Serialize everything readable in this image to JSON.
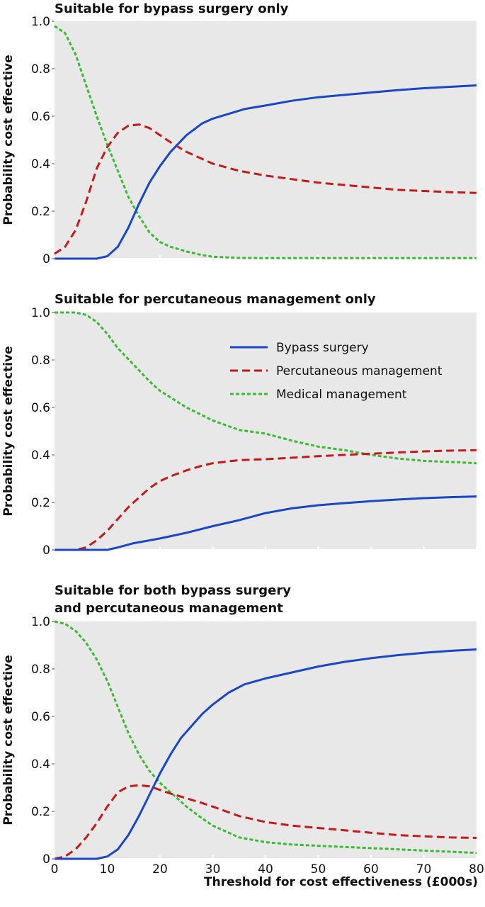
{
  "figure": {
    "xlabel": "Threshold for cost effectiveness (£000s)",
    "legend": [
      {
        "name": "Bypass surgery",
        "color": "#1a47c8",
        "dash": "solid"
      },
      {
        "name": "Percutaneous management",
        "color": "#c41a1a",
        "dash": "dashed"
      },
      {
        "name": "Medical management",
        "color": "#3cba32",
        "dash": "dotted"
      }
    ]
  },
  "chart_data": [
    {
      "type": "line",
      "title": "Suitable for bypass surgery only",
      "title_lines": [
        "Suitable for bypass surgery only"
      ],
      "xlabel": "",
      "ylabel": "Probability cost effective",
      "xlim": [
        0,
        80
      ],
      "ylim": [
        0,
        1
      ],
      "yticks": [
        0,
        0.2,
        0.4,
        0.6,
        0.8,
        1.0
      ],
      "ytick_labels": [
        "0",
        "0.2",
        "0.4",
        "0.6",
        "0.8",
        "1.0"
      ],
      "xticks": [
        0,
        10,
        20,
        30,
        40,
        50,
        60,
        70,
        80
      ],
      "xtick_labels": [],
      "grid": false,
      "legend": "none",
      "series": [
        {
          "name": "Bypass surgery",
          "color": "#1a47c8",
          "x": [
            0,
            6,
            8,
            10,
            12,
            14,
            16,
            18,
            20,
            22,
            25,
            28,
            30,
            33,
            36,
            40,
            45,
            50,
            55,
            60,
            65,
            70,
            75,
            80
          ],
          "y": [
            0,
            0,
            0,
            0.01,
            0.05,
            0.13,
            0.23,
            0.32,
            0.39,
            0.45,
            0.52,
            0.57,
            0.59,
            0.61,
            0.63,
            0.645,
            0.665,
            0.68,
            0.69,
            0.7,
            0.71,
            0.718,
            0.724,
            0.73
          ]
        },
        {
          "name": "Percutaneous management",
          "color": "#c41a1a",
          "x": [
            0,
            2,
            4,
            6,
            8,
            10,
            12,
            14,
            16,
            18,
            20,
            22,
            25,
            28,
            30,
            35,
            40,
            45,
            50,
            55,
            60,
            65,
            70,
            75,
            80
          ],
          "y": [
            0.02,
            0.05,
            0.12,
            0.24,
            0.38,
            0.47,
            0.53,
            0.56,
            0.565,
            0.55,
            0.52,
            0.49,
            0.45,
            0.42,
            0.4,
            0.37,
            0.35,
            0.335,
            0.32,
            0.31,
            0.3,
            0.29,
            0.285,
            0.28,
            0.277
          ]
        },
        {
          "name": "Medical management",
          "color": "#3cba32",
          "x": [
            0,
            2,
            4,
            6,
            8,
            10,
            12,
            14,
            16,
            18,
            20,
            22,
            25,
            28,
            30,
            35,
            40,
            50,
            60,
            70,
            80
          ],
          "y": [
            0.98,
            0.95,
            0.86,
            0.73,
            0.6,
            0.48,
            0.37,
            0.26,
            0.18,
            0.11,
            0.07,
            0.05,
            0.03,
            0.015,
            0.008,
            0.003,
            0.002,
            0.002,
            0.002,
            0.002,
            0.002
          ]
        }
      ]
    },
    {
      "type": "line",
      "title": "Suitable for percutaneous management only",
      "title_lines": [
        "Suitable for percutaneous management only"
      ],
      "xlabel": "",
      "ylabel": "Probability cost effective",
      "xlim": [
        0,
        80
      ],
      "ylim": [
        0,
        1
      ],
      "yticks": [
        0,
        0.2,
        0.4,
        0.6,
        0.8,
        1.0
      ],
      "ytick_labels": [
        "0",
        "0.2",
        "0.4",
        "0.6",
        "0.8",
        "1.0"
      ],
      "xticks": [
        0,
        10,
        20,
        30,
        40,
        50,
        60,
        70,
        80
      ],
      "xtick_labels": [],
      "grid": false,
      "legend": "top-right",
      "series": [
        {
          "name": "Bypass surgery",
          "color": "#1a47c8",
          "x": [
            0,
            8,
            10,
            12,
            15,
            18,
            20,
            25,
            30,
            35,
            40,
            45,
            50,
            55,
            60,
            65,
            70,
            75,
            80
          ],
          "y": [
            0,
            0,
            0,
            0.01,
            0.028,
            0.04,
            0.048,
            0.072,
            0.1,
            0.125,
            0.155,
            0.175,
            0.188,
            0.197,
            0.205,
            0.212,
            0.218,
            0.222,
            0.225
          ]
        },
        {
          "name": "Percutaneous management",
          "color": "#c41a1a",
          "x": [
            0,
            4,
            6,
            8,
            10,
            12,
            14,
            16,
            18,
            20,
            22,
            25,
            28,
            30,
            35,
            40,
            45,
            50,
            55,
            60,
            65,
            70,
            75,
            80
          ],
          "y": [
            0,
            0,
            0.01,
            0.04,
            0.08,
            0.13,
            0.18,
            0.22,
            0.26,
            0.29,
            0.31,
            0.335,
            0.355,
            0.365,
            0.378,
            0.382,
            0.388,
            0.395,
            0.4,
            0.405,
            0.41,
            0.415,
            0.418,
            0.42
          ]
        },
        {
          "name": "Medical management",
          "color": "#3cba32",
          "x": [
            0,
            4,
            6,
            8,
            10,
            12,
            15,
            18,
            20,
            25,
            30,
            35,
            40,
            45,
            50,
            55,
            60,
            65,
            70,
            75,
            80
          ],
          "y": [
            1.0,
            1.0,
            0.99,
            0.96,
            0.91,
            0.85,
            0.78,
            0.71,
            0.67,
            0.6,
            0.545,
            0.505,
            0.49,
            0.46,
            0.435,
            0.42,
            0.4,
            0.385,
            0.375,
            0.37,
            0.365
          ]
        }
      ]
    },
    {
      "type": "line",
      "title": "Suitable for both bypass surgery and percutaneous management",
      "title_lines": [
        "Suitable for both bypass surgery",
        "and percutaneous management"
      ],
      "xlabel": "Threshold for cost effectiveness (£000s)",
      "ylabel": "Probability cost effective",
      "xlim": [
        0,
        80
      ],
      "ylim": [
        0,
        1
      ],
      "yticks": [
        0,
        0.2,
        0.4,
        0.6,
        0.8,
        1.0
      ],
      "ytick_labels": [
        "0",
        "0.2",
        "0.4",
        "0.6",
        "0.8",
        "1.0"
      ],
      "xticks": [
        0,
        10,
        20,
        30,
        40,
        50,
        60,
        70,
        80
      ],
      "xtick_labels": [
        "0",
        "10",
        "20",
        "30",
        "40",
        "50",
        "60",
        "70",
        "80"
      ],
      "grid": false,
      "legend": "none",
      "series": [
        {
          "name": "Bypass surgery",
          "color": "#1a47c8",
          "x": [
            0,
            6,
            8,
            10,
            12,
            14,
            16,
            18,
            20,
            22,
            24,
            26,
            28,
            30,
            33,
            36,
            40,
            45,
            50,
            55,
            60,
            65,
            70,
            75,
            80
          ],
          "y": [
            0,
            0,
            0,
            0.01,
            0.04,
            0.1,
            0.18,
            0.27,
            0.36,
            0.44,
            0.51,
            0.56,
            0.61,
            0.65,
            0.7,
            0.735,
            0.76,
            0.785,
            0.81,
            0.83,
            0.845,
            0.858,
            0.868,
            0.876,
            0.882
          ]
        },
        {
          "name": "Percutaneous management",
          "color": "#c41a1a",
          "x": [
            0,
            2,
            4,
            6,
            8,
            10,
            12,
            14,
            16,
            18,
            20,
            22,
            25,
            28,
            30,
            35,
            40,
            45,
            50,
            55,
            60,
            65,
            70,
            75,
            80
          ],
          "y": [
            0,
            0.01,
            0.04,
            0.09,
            0.15,
            0.22,
            0.28,
            0.305,
            0.31,
            0.305,
            0.29,
            0.275,
            0.255,
            0.235,
            0.22,
            0.18,
            0.155,
            0.14,
            0.13,
            0.12,
            0.11,
            0.1,
            0.095,
            0.09,
            0.088
          ]
        },
        {
          "name": "Medical management",
          "color": "#3cba32",
          "x": [
            0,
            2,
            4,
            6,
            8,
            10,
            12,
            14,
            16,
            18,
            20,
            22,
            25,
            28,
            30,
            35,
            40,
            45,
            50,
            55,
            60,
            65,
            70,
            75,
            80
          ],
          "y": [
            1.0,
            0.99,
            0.96,
            0.91,
            0.84,
            0.75,
            0.64,
            0.53,
            0.44,
            0.37,
            0.32,
            0.28,
            0.22,
            0.17,
            0.14,
            0.09,
            0.07,
            0.06,
            0.055,
            0.05,
            0.045,
            0.04,
            0.035,
            0.03,
            0.025
          ]
        }
      ]
    }
  ]
}
